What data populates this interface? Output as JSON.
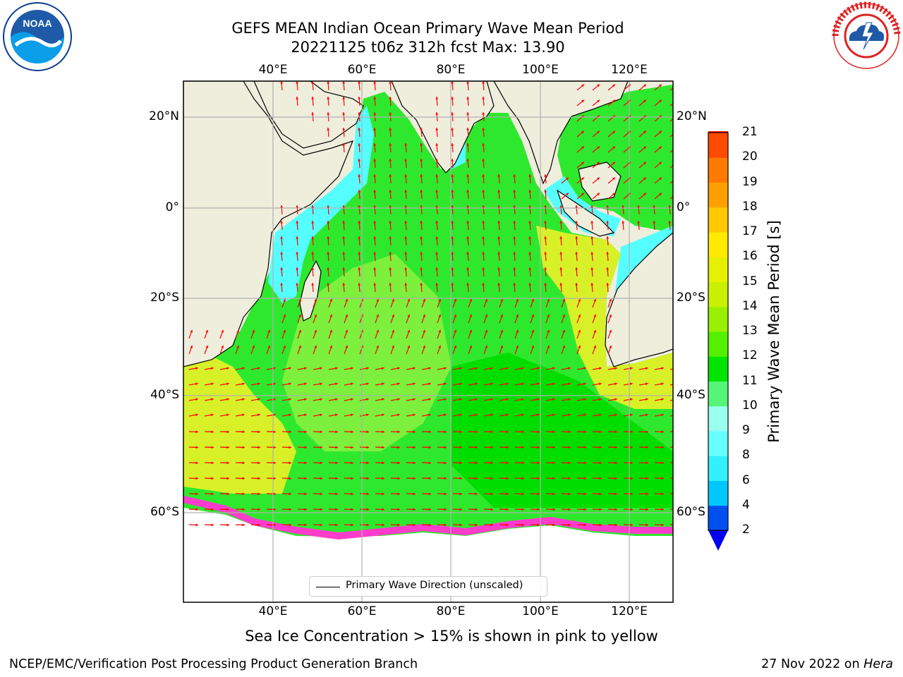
{
  "title_line1": "GEFS MEAN Indian Ocean Primary Wave Mean Period",
  "title_line2": "20221125 t06z 312h fcst   Max: 13.90",
  "lon_ticks": [
    "40°E",
    "60°E",
    "80°E",
    "100°E",
    "120°E"
  ],
  "lat_ticks": [
    "20°N",
    "0°",
    "20°S",
    "40°S",
    "60°S"
  ],
  "legend_label": "Primary Wave Direction (unscaled)",
  "colorbar": {
    "label": "Primary Wave Mean Period [s]",
    "ticks": [
      "2",
      "4",
      "6",
      "8",
      "9",
      "10",
      "11",
      "12",
      "13",
      "14",
      "15",
      "16",
      "17",
      "18",
      "19",
      "20",
      "21"
    ],
    "colors": [
      "#0050f0",
      "#00c8ff",
      "#33f0ff",
      "#66ffff",
      "#99ffee",
      "#55f57a",
      "#00e600",
      "#55f000",
      "#99f000",
      "#c8f000",
      "#e6f000",
      "#ffea00",
      "#ffc800",
      "#ffa000",
      "#ff7a00",
      "#ff4a00",
      "#ff1e00"
    ],
    "extend_color": "#0000ee"
  },
  "map": {
    "type": "heatmap",
    "lon_range": [
      20,
      130
    ],
    "lat_range": [
      -78,
      28
    ],
    "projection": "mercator",
    "colors": {
      "ocean": "#00e600",
      "land": "#efeedd",
      "ice_edge": "#ff44cc",
      "direction_arrows": "#ff0000"
    },
    "max_value": 13.9
  },
  "subtitle": "Sea Ice Concentration > 15% is shown in pink to yellow",
  "footer_left": "NCEP/EMC/Verification Post Processing Product Generation Branch",
  "footer_date": "27 Nov 2022 on ",
  "footer_machine": "Hera",
  "logos": {
    "left": "noaa-logo",
    "right": "national-weather-service-logo"
  }
}
